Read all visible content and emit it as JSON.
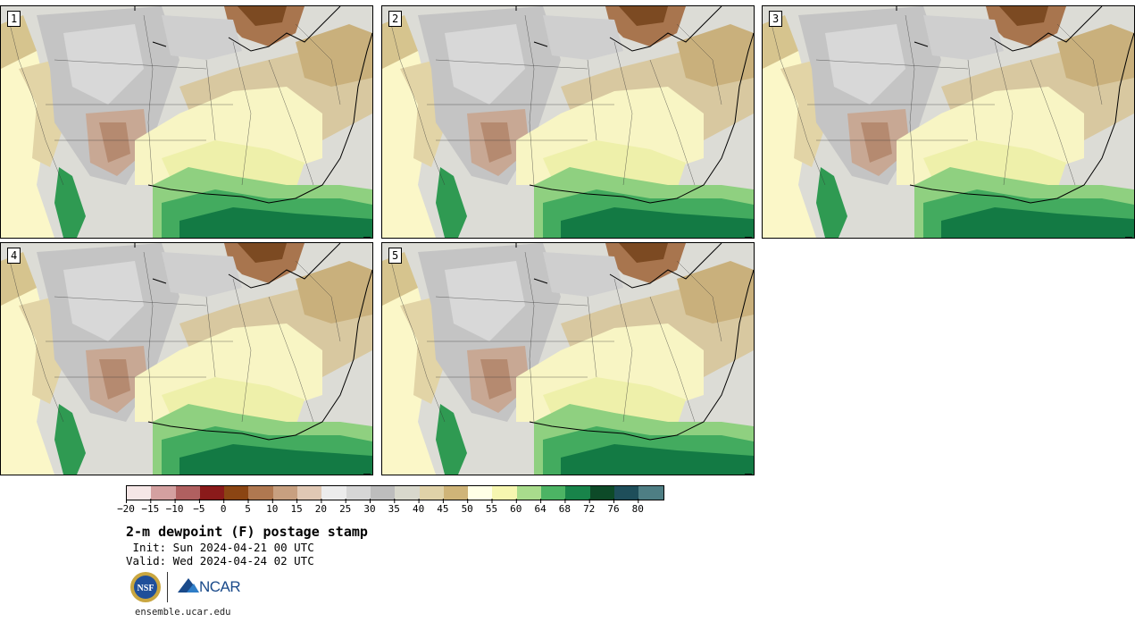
{
  "product": {
    "title": "2-m dewpoint (F) postage stamp",
    "init": " Init: Sun 2024-04-21 00 UTC",
    "valid": "Valid: Wed 2024-04-24 02 UTC",
    "url": "ensemble.ucar.edu"
  },
  "panels": [
    {
      "label": "1"
    },
    {
      "label": "2"
    },
    {
      "label": "3"
    },
    {
      "label": "4"
    },
    {
      "label": "5"
    }
  ],
  "colorbar": {
    "tick_labels": [
      "−20",
      "−15",
      "−10",
      "−5",
      "0",
      "5",
      "10",
      "15",
      "20",
      "25",
      "30",
      "35",
      "40",
      "45",
      "50",
      "55",
      "60",
      "64",
      "68",
      "72",
      "76",
      "80"
    ],
    "colors": [
      "#f5e6e6",
      "#d4a0a0",
      "#b06060",
      "#8a1a1a",
      "#8b4513",
      "#b07850",
      "#c8a080",
      "#e0c8b4",
      "#ececec",
      "#d6d6d6",
      "#bdbdbd",
      "#d8d8cc",
      "#e0d2a8",
      "#cfb478",
      "#ffffe6",
      "#f6f6b0",
      "#a8dc8c",
      "#4cb464",
      "#18844a",
      "#0d4a28",
      "#1e4e5a",
      "#4e7e84"
    ]
  },
  "logos": {
    "nsf_text": "NSF",
    "ncar_text": "NCAR"
  }
}
